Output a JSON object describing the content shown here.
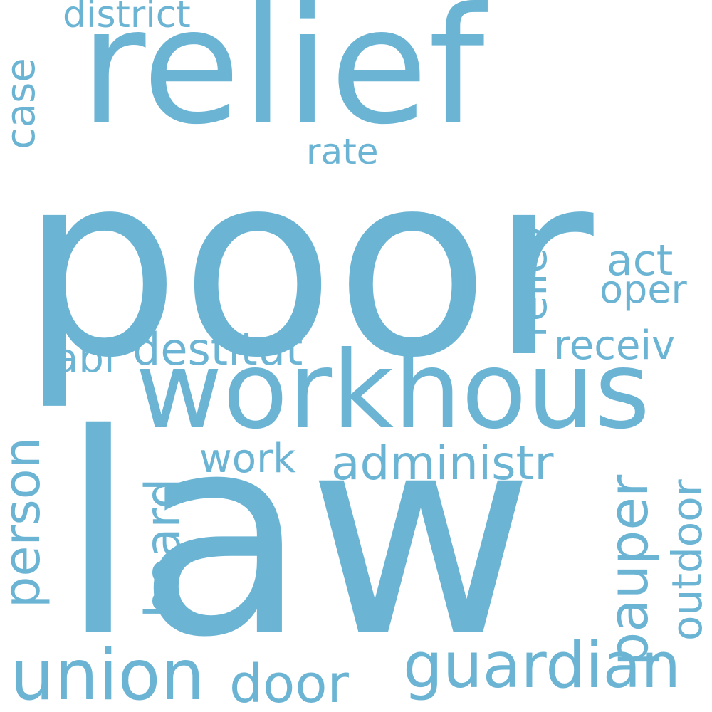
{
  "word_color": "#6bb4d4",
  "background_color": "#ffffff",
  "words": {
    "poor": "poor",
    "law": "law",
    "relief": "relief",
    "workhous": "workhous",
    "union": "union",
    "guardian": "guardian",
    "administr": "administr",
    "pauper": "pauper",
    "outdoor": "outdoor",
    "door": "door",
    "destitut": "destitut",
    "abl": "abl",
    "person": "person",
    "board": "board",
    "work": "work",
    "case": "case",
    "district": "district",
    "rate": "rate",
    "reliev": "reliev",
    "act": "act",
    "oper": "oper",
    "receiv": "receiv"
  }
}
